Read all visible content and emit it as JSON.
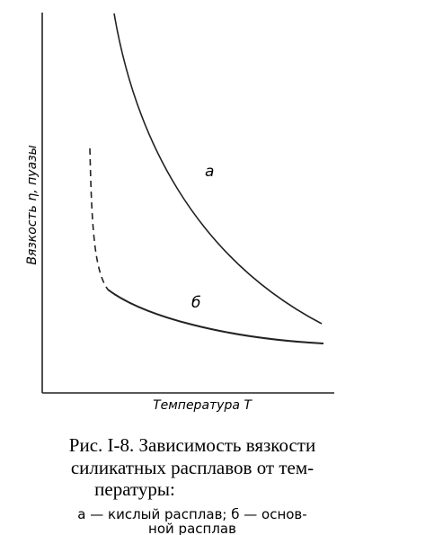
{
  "figure": {
    "y_axis_label": "Вязкость η, пуазы",
    "x_axis_label": "Температура Т",
    "curves": [
      {
        "label": "а"
      },
      {
        "label": "б"
      }
    ]
  },
  "caption": {
    "title_lines": [
      "Рис. I-8. Зависимость вязкости",
      "силикатных расплавов от тем-",
      "пературы:"
    ],
    "legend_lines": [
      "а — кислый расплав; б — основ-",
      "ной расплав"
    ]
  }
}
